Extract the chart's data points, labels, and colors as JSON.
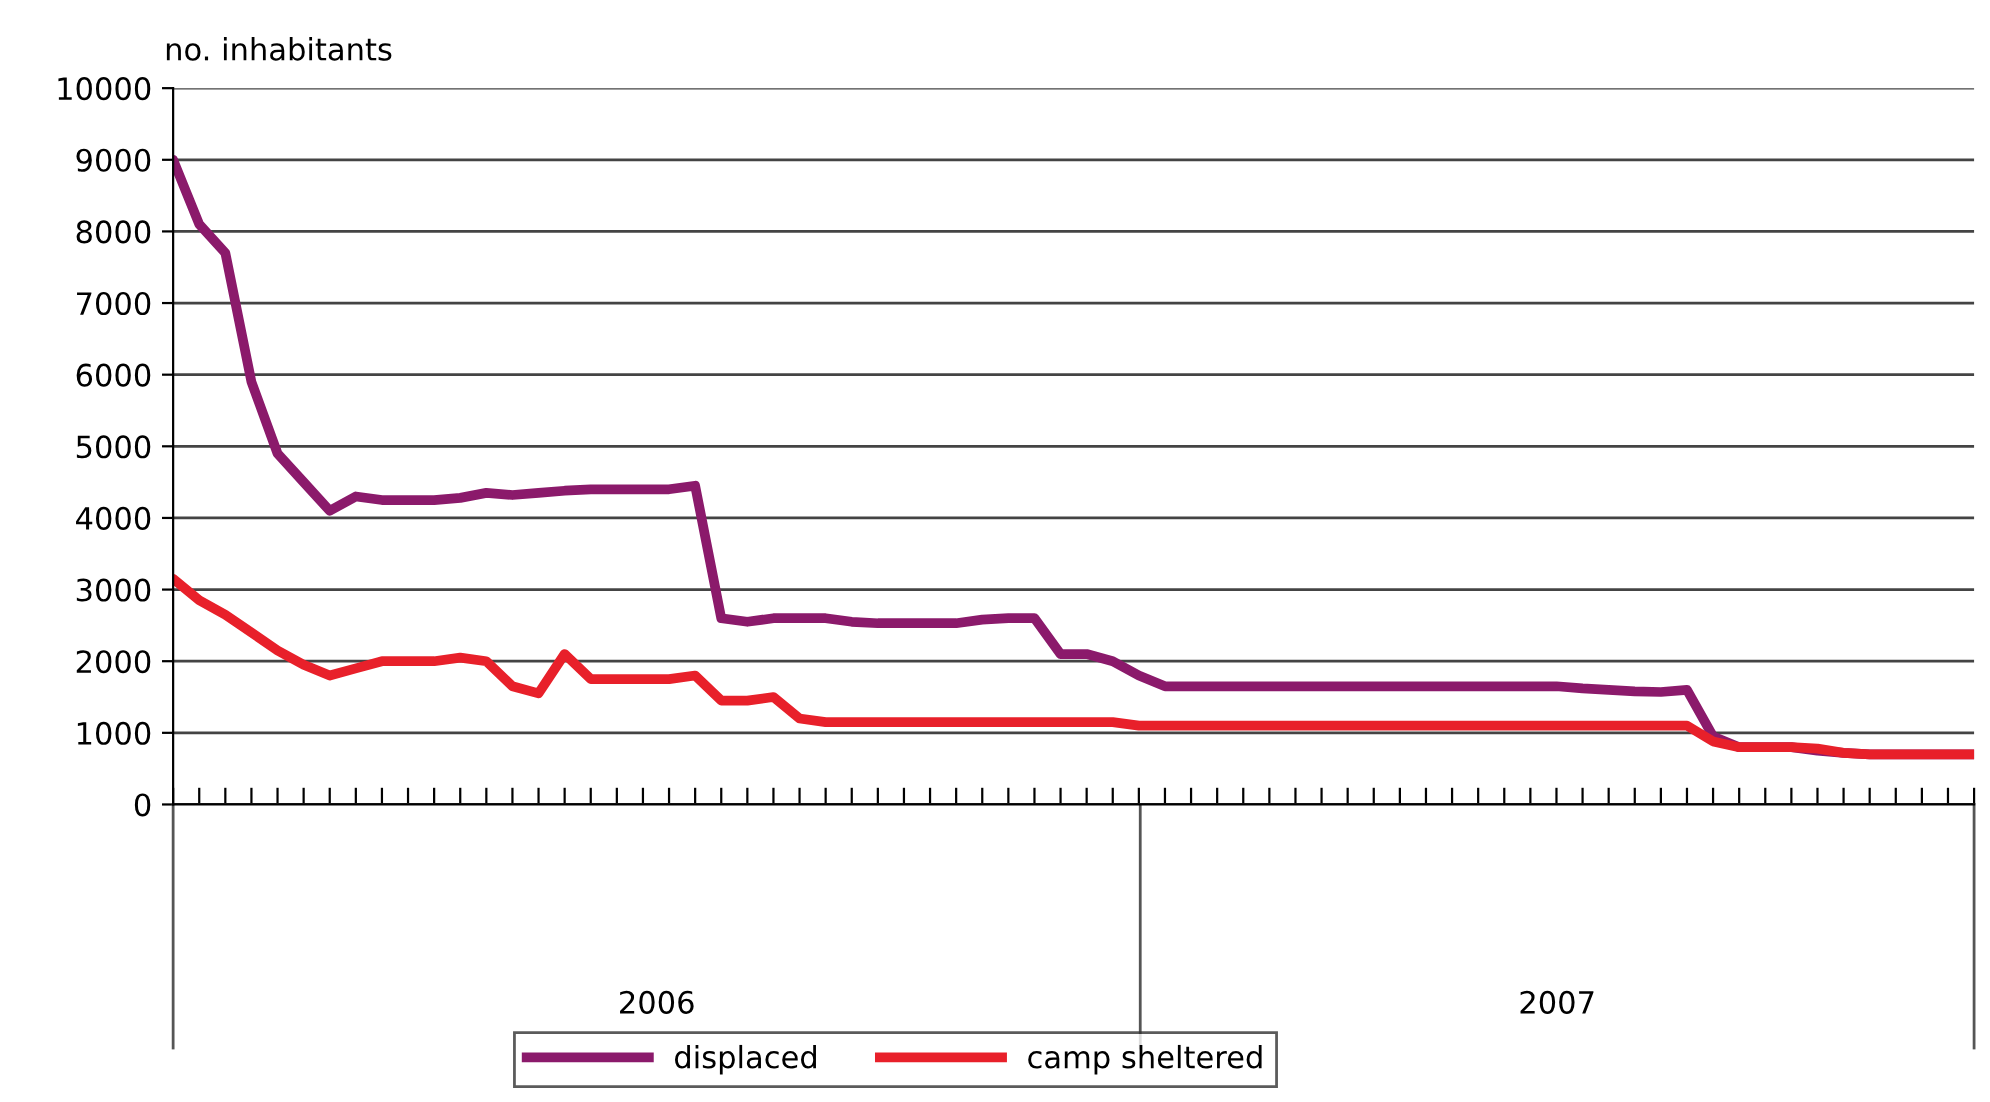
{
  "chart_data": {
    "type": "line",
    "ylabel": "no. inhabitants",
    "categories": [
      null,
      null,
      null,
      null,
      null,
      null,
      null,
      null,
      null,
      null,
      null,
      null,
      null,
      null,
      null,
      null,
      null,
      null,
      null,
      null,
      null,
      null,
      null,
      null,
      null,
      null,
      null,
      null,
      null,
      null,
      null,
      null,
      null,
      null,
      null,
      null,
      null,
      null,
      null,
      null,
      null,
      null,
      null,
      null,
      null,
      null,
      null,
      null,
      null,
      null,
      null,
      null,
      null,
      null,
      null,
      null,
      null,
      null,
      null,
      null,
      null,
      null,
      null,
      null,
      null,
      null,
      null,
      null,
      null,
      null
    ],
    "series": [
      {
        "name": "displaced",
        "color": "#8b1a6b",
        "values": [
          9000,
          8100,
          7700,
          5900,
          4900,
          4500,
          4100,
          4300,
          4250,
          4250,
          4250,
          4280,
          4350,
          4320,
          4350,
          4380,
          4400,
          4400,
          4400,
          4400,
          4450,
          2600,
          2550,
          2600,
          2600,
          2600,
          2550,
          2530,
          2530,
          2530,
          2530,
          2580,
          2600,
          2600,
          2100,
          2100,
          2000,
          1800,
          1650,
          1650,
          1650,
          1650,
          1650,
          1650,
          1650,
          1650,
          1650,
          1650,
          1650,
          1650,
          1650,
          1650,
          1650,
          1650,
          1620,
          1600,
          1580,
          1570,
          1600,
          950,
          800,
          800,
          800,
          750,
          720,
          700,
          700,
          700,
          700,
          700
        ]
      },
      {
        "name": "camp sheltered",
        "color": "#e8202a",
        "values": [
          3150,
          2850,
          2650,
          2400,
          2150,
          1950,
          1800,
          1900,
          2000,
          2000,
          2000,
          2050,
          2000,
          1650,
          1550,
          2100,
          1750,
          1750,
          1750,
          1750,
          1800,
          1450,
          1450,
          1500,
          1200,
          1150,
          1150,
          1150,
          1150,
          1150,
          1150,
          1150,
          1150,
          1150,
          1150,
          1150,
          1150,
          1100,
          1100,
          1100,
          1100,
          1100,
          1100,
          1100,
          1100,
          1100,
          1100,
          1100,
          1100,
          1100,
          1100,
          1100,
          1100,
          1100,
          1100,
          1100,
          1100,
          1100,
          1100,
          880,
          800,
          800,
          800,
          780,
          720,
          700,
          700,
          700,
          700,
          700
        ]
      }
    ],
    "ylim": [
      0,
      10000
    ],
    "yticks": [
      0,
      1000,
      2000,
      3000,
      4000,
      5000,
      6000,
      7000,
      8000,
      9000,
      10000
    ],
    "grid": "y",
    "legend": "bottom",
    "tick_labels": "y",
    "marker": "none",
    "line_style": "solid",
    "annotations": [
      "2006",
      "2007"
    ]
  }
}
